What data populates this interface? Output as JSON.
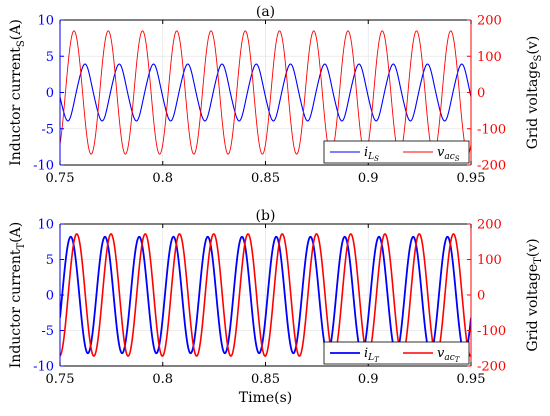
{
  "figure": {
    "time_label": "Time(s)",
    "colors": {
      "current": "#0000ff",
      "voltage": "#ff0000",
      "axes": "#000000",
      "grid": "#e6e6e6"
    }
  },
  "chart_data": [
    {
      "type": "line",
      "title": "(a)",
      "xlabel": "",
      "ylabel_left": {
        "main": "Inductor current",
        "sub": "S",
        "unit": "(A)"
      },
      "ylabel_right": {
        "main": "Grid voltage",
        "sub": "S",
        "unit": "(v)"
      },
      "xlim": [
        0.75,
        0.95
      ],
      "ylim_left": [
        -10,
        10
      ],
      "ylim_right": [
        -200,
        200
      ],
      "xticks": [
        "0.75",
        "0.8",
        "0.85",
        "0.9",
        "0.95"
      ],
      "yticks_left": [
        "-10",
        "-5",
        "0",
        "5",
        "10"
      ],
      "yticks_right": [
        "-200",
        "-100",
        "0",
        "100",
        "200"
      ],
      "grid": true,
      "legend_position": "bottom-right",
      "series": [
        {
          "name": "i_LS",
          "legend_main": "i",
          "legend_sub": "L",
          "legend_subsub": "S",
          "axis": "left",
          "color": "#0000ff",
          "amplitude": 3.8,
          "frequency_hz": 60,
          "phase_rad": 3.3,
          "line_width": 1.1
        },
        {
          "name": "v_acS",
          "legend_main": "v",
          "legend_sub": "ac",
          "legend_subsub": "S",
          "axis": "right",
          "color": "#ff0000",
          "amplitude": 170,
          "frequency_hz": 60,
          "phase_rad": -1.0,
          "line_width": 0.9
        }
      ]
    },
    {
      "type": "line",
      "title": "(b)",
      "xlabel": "Time(s)",
      "ylabel_left": {
        "main": "Inductor current",
        "sub": "T",
        "unit": "(A)"
      },
      "ylabel_right": {
        "main": "Grid voltage",
        "sub": "T",
        "unit": "(v)"
      },
      "xlim": [
        0.75,
        0.95
      ],
      "ylim_left": [
        -10,
        10
      ],
      "ylim_right": [
        -200,
        200
      ],
      "xticks": [
        "0.75",
        "0.8",
        "0.85",
        "0.9",
        "0.95"
      ],
      "yticks_left": [
        "-10",
        "-5",
        "0",
        "5",
        "10"
      ],
      "yticks_right": [
        "-200",
        "-100",
        "0",
        "100",
        "200"
      ],
      "grid": true,
      "legend_position": "bottom-right",
      "series": [
        {
          "name": "i_LT",
          "legend_main": "i",
          "legend_sub": "L",
          "legend_subsub": "T",
          "axis": "left",
          "color": "#0000ff",
          "amplitude": 8.2,
          "frequency_hz": 60,
          "phase_rad": -0.4,
          "line_width": 1.8
        },
        {
          "name": "v_acT",
          "legend_main": "v",
          "legend_sub": "ac",
          "legend_subsub": "T",
          "axis": "right",
          "color": "#ff0000",
          "amplitude": 172,
          "frequency_hz": 60,
          "phase_rad": -1.5,
          "line_width": 1.6
        }
      ]
    }
  ]
}
